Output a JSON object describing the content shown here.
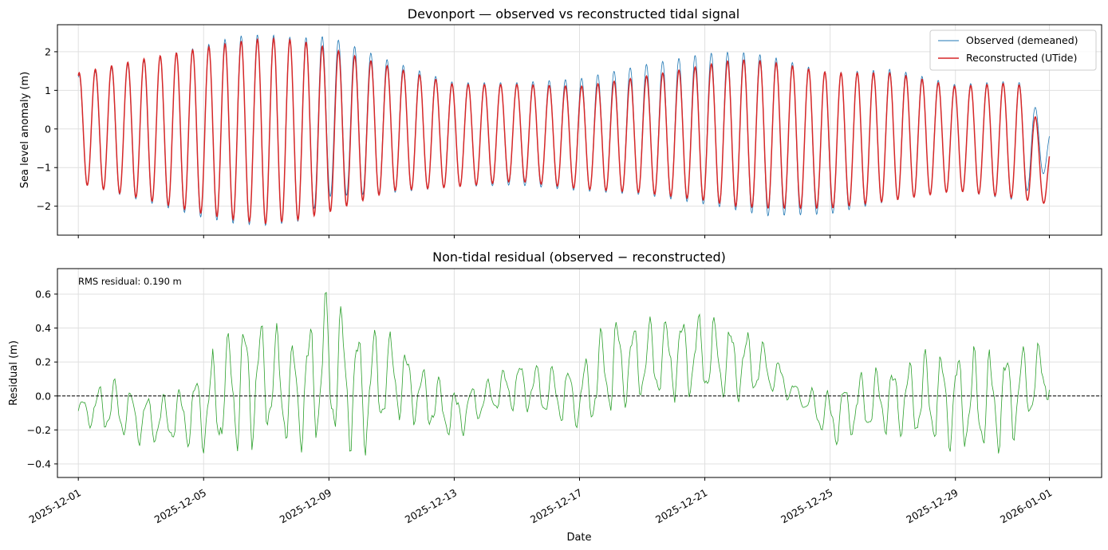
{
  "chart_data": [
    {
      "type": "line",
      "title": "Devonport — observed vs reconstructed tidal signal",
      "xlabel": "",
      "ylabel": "Sea level anomaly (m)",
      "x_range": [
        "2025-11-30T08:00",
        "2026-01-02T16:00"
      ],
      "ylim": [
        -2.75,
        2.7
      ],
      "yticks": [
        -2,
        -1,
        0,
        1,
        2
      ],
      "grid": true,
      "legend_position": "top-right",
      "series": [
        {
          "name": "Observed (demeaned)",
          "color": "#1f77b4",
          "sampling": "hourly, 2025-12-01T00:00 to 2026-01-01T00:00",
          "envelope_x": [
            "2025-12-01",
            "2025-12-03",
            "2025-12-05",
            "2025-12-06",
            "2025-12-07",
            "2025-12-08",
            "2025-12-09",
            "2025-12-11",
            "2025-12-13",
            "2025-12-15",
            "2025-12-17",
            "2025-12-19",
            "2025-12-21",
            "2025-12-22",
            "2025-12-23",
            "2025-12-25",
            "2025-12-27",
            "2025-12-29",
            "2025-12-31",
            "2026-01-01"
          ],
          "high_water": [
            1.4,
            1.75,
            2.15,
            2.4,
            2.45,
            2.35,
            2.4,
            1.75,
            1.2,
            1.2,
            1.3,
            1.65,
            1.95,
            2.0,
            1.9,
            1.45,
            1.55,
            1.15,
            1.25,
            0.0
          ],
          "low_water": [
            -1.4,
            -1.85,
            -2.3,
            -2.45,
            -2.5,
            -2.4,
            -1.75,
            -1.65,
            -1.5,
            -1.45,
            -1.6,
            -1.7,
            -1.95,
            -2.1,
            -2.25,
            -2.2,
            -1.85,
            -1.6,
            -1.85,
            -1.0
          ]
        },
        {
          "name": "Reconstructed (UTide)",
          "color": "#d62728",
          "sampling": "hourly, 2025-12-01T00:00 to 2026-01-01T00:00",
          "envelope_x": [
            "2025-12-01",
            "2025-12-03",
            "2025-12-05",
            "2025-12-06",
            "2025-12-07",
            "2025-12-08",
            "2025-12-09",
            "2025-12-11",
            "2025-12-13",
            "2025-12-15",
            "2025-12-17",
            "2025-12-19",
            "2025-12-21",
            "2025-12-22",
            "2025-12-23",
            "2025-12-25",
            "2025-12-27",
            "2025-12-29",
            "2025-12-31",
            "2026-01-01"
          ],
          "high_water": [
            1.45,
            1.8,
            2.1,
            2.25,
            2.35,
            2.3,
            2.1,
            1.6,
            1.15,
            1.15,
            1.1,
            1.35,
            1.65,
            1.8,
            1.75,
            1.45,
            1.45,
            1.1,
            1.2,
            -0.4
          ],
          "low_water": [
            -1.4,
            -1.8,
            -2.2,
            -2.35,
            -2.45,
            -2.35,
            -2.15,
            -1.6,
            -1.5,
            -1.35,
            -1.55,
            -1.65,
            -1.85,
            -2.0,
            -2.05,
            -2.05,
            -1.85,
            -1.6,
            -1.8,
            -1.95
          ]
        }
      ]
    },
    {
      "type": "line",
      "title": "Non-tidal residual (observed − reconstructed)",
      "xlabel": "Date",
      "ylabel": "Residual (m)",
      "x_range": [
        "2025-11-30T08:00",
        "2026-01-02T16:00"
      ],
      "ylim": [
        -0.48,
        0.75
      ],
      "yticks": [
        -0.4,
        -0.2,
        0.0,
        0.2,
        0.4,
        0.6
      ],
      "xticks": [
        "2025-12-01",
        "2025-12-05",
        "2025-12-09",
        "2025-12-13",
        "2025-12-17",
        "2025-12-21",
        "2025-12-25",
        "2025-12-29",
        "2026-01-01"
      ],
      "grid": true,
      "zero_line": {
        "y": 0.0,
        "style": "dashed",
        "color": "#000000"
      },
      "annotation": "RMS residual: 0.190 m",
      "series": [
        {
          "name": "",
          "color": "#2ca02c",
          "sampling": "hourly, 2025-12-01T00:00 to 2026-01-01T00:00",
          "envelope_x": [
            "2025-12-01",
            "2025-12-02",
            "2025-12-03",
            "2025-12-04",
            "2025-12-05",
            "2025-12-06",
            "2025-12-07",
            "2025-12-08",
            "2025-12-09",
            "2025-12-10",
            "2025-12-11",
            "2025-12-12",
            "2025-12-13",
            "2025-12-14",
            "2025-12-15",
            "2025-12-16",
            "2025-12-17",
            "2025-12-18",
            "2025-12-19",
            "2025-12-20",
            "2025-12-21",
            "2025-12-22",
            "2025-12-23",
            "2025-12-24",
            "2025-12-25",
            "2025-12-26",
            "2025-12-27",
            "2025-12-28",
            "2025-12-29",
            "2025-12-30",
            "2025-12-31",
            "2026-01-01"
          ],
          "upper": [
            -0.02,
            0.13,
            0.03,
            0.03,
            0.2,
            0.5,
            0.5,
            0.35,
            0.7,
            0.45,
            0.4,
            0.2,
            0.05,
            0.1,
            0.23,
            0.2,
            0.2,
            0.52,
            0.45,
            0.52,
            0.52,
            0.45,
            0.32,
            0.05,
            0.05,
            0.15,
            0.2,
            0.28,
            0.3,
            0.3,
            0.33,
            0.32
          ],
          "lower": [
            -0.18,
            -0.24,
            -0.3,
            -0.3,
            -0.36,
            -0.38,
            -0.28,
            -0.35,
            -0.3,
            -0.42,
            -0.15,
            -0.2,
            -0.28,
            -0.13,
            -0.1,
            -0.15,
            -0.22,
            -0.15,
            -0.05,
            -0.05,
            -0.05,
            -0.05,
            0.0,
            -0.05,
            -0.32,
            -0.25,
            -0.25,
            -0.3,
            -0.35,
            -0.4,
            -0.27,
            -0.03
          ]
        }
      ]
    }
  ]
}
